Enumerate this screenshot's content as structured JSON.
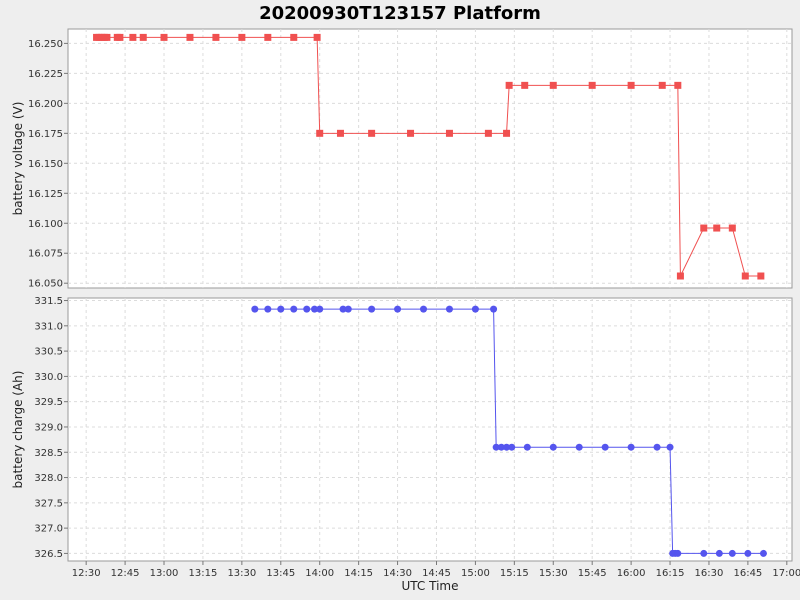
{
  "chart_data": {
    "type": "line",
    "title": "20200930T123157 Platform",
    "xlabel": "UTC Time",
    "x_ticks": [
      "12:30",
      "12:45",
      "13:00",
      "13:15",
      "13:30",
      "13:45",
      "14:00",
      "14:15",
      "14:30",
      "14:45",
      "15:00",
      "15:15",
      "15:30",
      "15:45",
      "16:00",
      "16:15",
      "16:30",
      "16:45",
      "17:00"
    ],
    "x_range": [
      "12:23",
      "17:02"
    ],
    "grid": true,
    "panels": [
      {
        "ylabel": "battery voltage (V)",
        "y_ticks": [
          "16.050",
          "16.075",
          "16.100",
          "16.125",
          "16.150",
          "16.175",
          "16.200",
          "16.225",
          "16.250"
        ],
        "ylim": [
          16.046,
          16.262
        ],
        "series": [
          {
            "color": "#f05050",
            "marker": "square",
            "points": [
              [
                "12:34",
                16.255
              ],
              [
                "12:35",
                16.255
              ],
              [
                "12:36",
                16.255
              ],
              [
                "12:37",
                16.255
              ],
              [
                "12:38",
                16.255
              ],
              [
                "12:42",
                16.255
              ],
              [
                "12:43",
                16.255
              ],
              [
                "12:48",
                16.255
              ],
              [
                "12:52",
                16.255
              ],
              [
                "13:00",
                16.255
              ],
              [
                "13:10",
                16.255
              ],
              [
                "13:20",
                16.255
              ],
              [
                "13:30",
                16.255
              ],
              [
                "13:40",
                16.255
              ],
              [
                "13:50",
                16.255
              ],
              [
                "13:59",
                16.255
              ],
              [
                "14:00",
                16.175
              ],
              [
                "14:08",
                16.175
              ],
              [
                "14:20",
                16.175
              ],
              [
                "14:35",
                16.175
              ],
              [
                "14:50",
                16.175
              ],
              [
                "15:05",
                16.175
              ],
              [
                "15:12",
                16.175
              ],
              [
                "15:13",
                16.215
              ],
              [
                "15:19",
                16.215
              ],
              [
                "15:30",
                16.215
              ],
              [
                "15:45",
                16.215
              ],
              [
                "16:00",
                16.215
              ],
              [
                "16:12",
                16.215
              ],
              [
                "16:18",
                16.215
              ],
              [
                "16:19",
                16.056
              ],
              [
                "16:28",
                16.096
              ],
              [
                "16:33",
                16.096
              ],
              [
                "16:39",
                16.096
              ],
              [
                "16:44",
                16.056
              ],
              [
                "16:50",
                16.056
              ]
            ]
          }
        ]
      },
      {
        "ylabel": "battery charge (Ah)",
        "y_ticks": [
          "326.5",
          "327.0",
          "327.5",
          "328.0",
          "328.5",
          "329.0",
          "329.5",
          "330.0",
          "330.5",
          "331.0",
          "331.5"
        ],
        "ylim": [
          326.35,
          331.55
        ],
        "series": [
          {
            "color": "#5555ee",
            "marker": "circle",
            "points": [
              [
                "13:35",
                331.33
              ],
              [
                "13:40",
                331.33
              ],
              [
                "13:45",
                331.33
              ],
              [
                "13:50",
                331.33
              ],
              [
                "13:55",
                331.33
              ],
              [
                "13:58",
                331.33
              ],
              [
                "14:00",
                331.33
              ],
              [
                "14:09",
                331.33
              ],
              [
                "14:11",
                331.33
              ],
              [
                "14:20",
                331.33
              ],
              [
                "14:30",
                331.33
              ],
              [
                "14:40",
                331.33
              ],
              [
                "14:50",
                331.33
              ],
              [
                "15:00",
                331.33
              ],
              [
                "15:07",
                331.33
              ],
              [
                "15:08",
                328.6
              ],
              [
                "15:10",
                328.6
              ],
              [
                "15:12",
                328.6
              ],
              [
                "15:14",
                328.6
              ],
              [
                "15:20",
                328.6
              ],
              [
                "15:30",
                328.6
              ],
              [
                "15:40",
                328.6
              ],
              [
                "15:50",
                328.6
              ],
              [
                "16:00",
                328.6
              ],
              [
                "16:10",
                328.6
              ],
              [
                "16:15",
                328.6
              ],
              [
                "16:16",
                326.5
              ],
              [
                "16:17",
                326.5
              ],
              [
                "16:18",
                326.5
              ],
              [
                "16:28",
                326.5
              ],
              [
                "16:34",
                326.5
              ],
              [
                "16:39",
                326.5
              ],
              [
                "16:45",
                326.5
              ],
              [
                "16:51",
                326.5
              ]
            ]
          }
        ]
      }
    ]
  }
}
